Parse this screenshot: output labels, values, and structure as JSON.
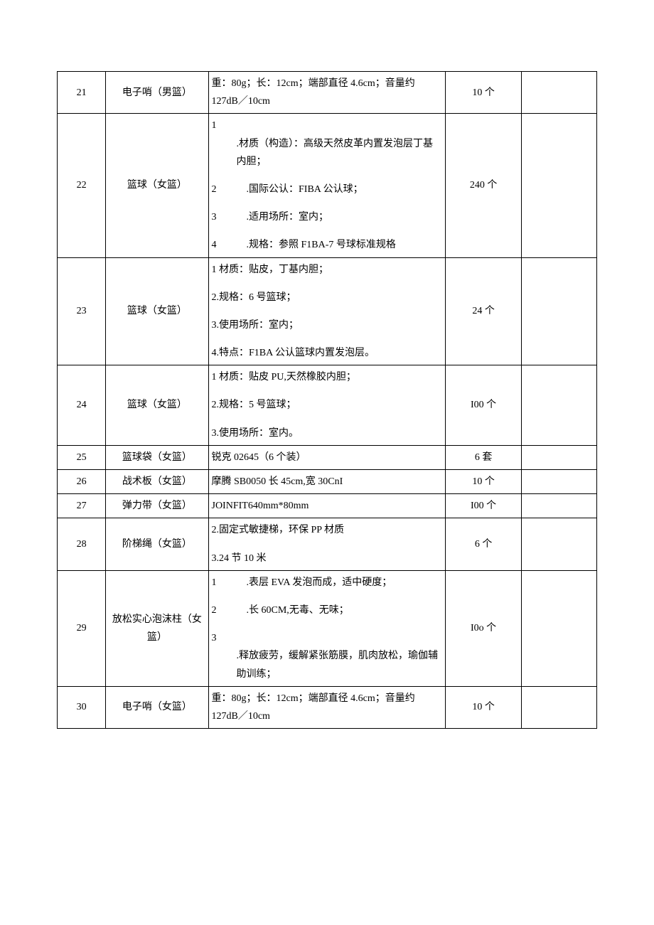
{
  "rows": [
    {
      "num": "21",
      "name": "电子哨（男篮）",
      "desc_lines": [
        {
          "type": "text",
          "text": "重：80g；长：12cm；端部直径 4.6cm；音量约 127dB／10cm"
        }
      ],
      "qty": "10 个"
    },
    {
      "num": "22",
      "name": "篮球（女篮）",
      "desc_lines": [
        {
          "type": "nl",
          "n": "1",
          "text": ".材质（构造）：高级天然皮革内置发泡层丁基内胆；"
        },
        {
          "type": "spacer"
        },
        {
          "type": "nl",
          "n": "2",
          "text": ".国际公认：FIBA 公认球；"
        },
        {
          "type": "spacer"
        },
        {
          "type": "nl",
          "n": "3",
          "text": ".适用场所：室内；"
        },
        {
          "type": "spacer"
        },
        {
          "type": "nl",
          "n": "4",
          "text": ".规格：参照 F1BA-7 号球标准规格"
        }
      ],
      "qty": "240 个"
    },
    {
      "num": "23",
      "name": "篮球（女篮）",
      "desc_lines": [
        {
          "type": "text",
          "text": "1 材质：贴皮，丁基内胆；"
        },
        {
          "type": "spacer"
        },
        {
          "type": "text",
          "text": "2.规格：6 号篮球；"
        },
        {
          "type": "spacer"
        },
        {
          "type": "text",
          "text": "3.使用场所：室内；"
        },
        {
          "type": "spacer"
        },
        {
          "type": "text",
          "text": "4.特点：F1BA 公认篮球内置发泡层。"
        }
      ],
      "qty": "24 个"
    },
    {
      "num": "24",
      "name": "篮球（女篮）",
      "desc_lines": [
        {
          "type": "text",
          "text": "1 材质：贴皮 PU,天然橡胶内胆；"
        },
        {
          "type": "spacer"
        },
        {
          "type": "text",
          "text": "2.规格：5 号篮球；"
        },
        {
          "type": "spacer"
        },
        {
          "type": "text",
          "text": "3.使用场所：室内。"
        }
      ],
      "qty": "I00 个"
    },
    {
      "num": "25",
      "name": "篮球袋（女篮）",
      "desc_lines": [
        {
          "type": "text",
          "text": "锐克 02645（6 个装）"
        }
      ],
      "qty": "6 套"
    },
    {
      "num": "26",
      "name": "战术板（女篮）",
      "desc_lines": [
        {
          "type": "text",
          "text": "摩腾 SB0050 长 45cm,宽 30CnI"
        }
      ],
      "qty": "10 个"
    },
    {
      "num": "27",
      "name": "弹力带（女篮）",
      "desc_lines": [
        {
          "type": "text",
          "text": "JOINFIT640mm*80mm"
        }
      ],
      "qty": "I00 个"
    },
    {
      "num": "28",
      "name": "阶梯绳（女篮）",
      "desc_lines": [
        {
          "type": "text",
          "text": "2.固定式敏捷梯，环保 PP 材质"
        },
        {
          "type": "spacer"
        },
        {
          "type": "text",
          "text": "3.24 节 10 米"
        }
      ],
      "qty": "6 个"
    },
    {
      "num": "29",
      "name": "放松实心泡沫柱（女篮）",
      "desc_lines": [
        {
          "type": "nl",
          "n": "1",
          "text": ".表层 EVA 发泡而成，适中硬度；"
        },
        {
          "type": "spacer"
        },
        {
          "type": "nl",
          "n": "2",
          "text": ".长 60CM,无毒、无味；"
        },
        {
          "type": "spacer"
        },
        {
          "type": "nl",
          "n": "3",
          "text": ".释放疲劳，缓解紧张筋膜，肌肉放松，瑜伽辅助训练；"
        }
      ],
      "qty": "I0o 个"
    },
    {
      "num": "30",
      "name": "电子哨（女篮）",
      "desc_lines": [
        {
          "type": "text",
          "text": "重：80g；长：12cm；端部直径 4.6cm；音量约 127dB／10cm"
        }
      ],
      "qty": "10 个"
    }
  ]
}
